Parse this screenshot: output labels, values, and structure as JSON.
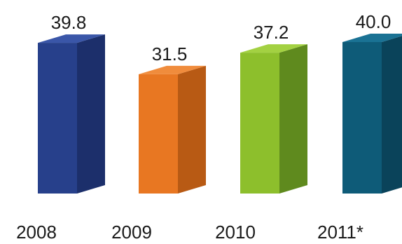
{
  "chart_data": {
    "type": "bar",
    "categories": [
      "2008",
      "2009",
      "2010",
      "2011*"
    ],
    "values": [
      39.8,
      31.5,
      37.2,
      40.0
    ],
    "value_labels": [
      "39.8",
      "31.5",
      "37.2",
      "40.0"
    ],
    "title": "",
    "xlabel": "",
    "ylabel": "",
    "ylim": [
      0,
      40
    ],
    "grid": false,
    "legend": "none",
    "bar_style": "3d",
    "colors": [
      {
        "front": "#27408b",
        "side": "#1c2f6b",
        "top": "#3a56a8"
      },
      {
        "front": "#e87722",
        "side": "#b85a14",
        "top": "#f08c3c"
      },
      {
        "front": "#8dbf2c",
        "side": "#5f8a1e",
        "top": "#a3d142"
      },
      {
        "front": "#0e5b78",
        "side": "#0a435a",
        "top": "#1a7294"
      }
    ]
  }
}
